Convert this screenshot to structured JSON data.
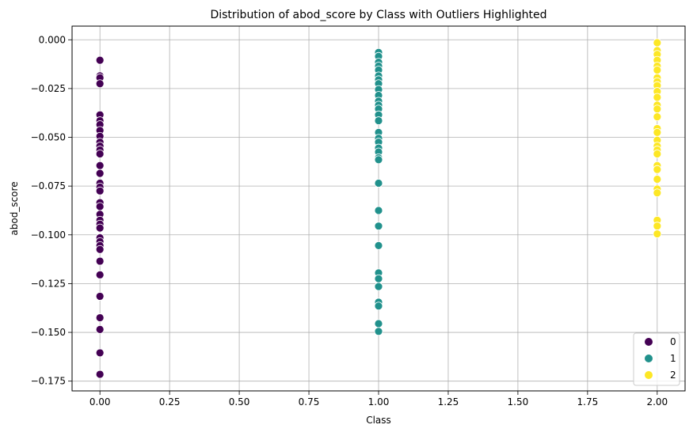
{
  "chart_data": {
    "type": "scatter",
    "title": "Distribution of abod_score by Class with Outliers Highlighted",
    "xlabel": "Class",
    "ylabel": "abod_score",
    "xlim": [
      -0.1,
      2.1
    ],
    "ylim": [
      -0.18,
      0.007
    ],
    "x_ticks": [
      "0.00",
      "0.25",
      "0.50",
      "0.75",
      "1.00",
      "1.25",
      "1.50",
      "1.75",
      "2.00"
    ],
    "x_tick_values": [
      0,
      0.25,
      0.5,
      0.75,
      1.0,
      1.25,
      1.5,
      1.75,
      2.0
    ],
    "y_ticks": [
      "0.000",
      "−0.025",
      "−0.050",
      "−0.075",
      "−0.100",
      "−0.125",
      "−0.150",
      "−0.175"
    ],
    "y_tick_values": [
      0,
      -0.025,
      -0.05,
      -0.075,
      -0.1,
      -0.125,
      -0.15,
      -0.175
    ],
    "grid": true,
    "legend": {
      "position": "bottom-right",
      "entries": [
        "0",
        "1",
        "2"
      ]
    },
    "series": [
      {
        "name": "0",
        "color": "#440154",
        "x": 0,
        "values": [
          -0.0105,
          -0.0185,
          -0.0195,
          -0.0225,
          -0.0385,
          -0.0415,
          -0.0435,
          -0.0465,
          -0.0495,
          -0.0525,
          -0.0545,
          -0.0565,
          -0.0585,
          -0.0645,
          -0.0685,
          -0.0735,
          -0.0755,
          -0.0775,
          -0.0835,
          -0.0855,
          -0.0895,
          -0.0925,
          -0.0945,
          -0.0965,
          -0.1015,
          -0.1035,
          -0.1055,
          -0.1075,
          -0.1135,
          -0.1205,
          -0.1315,
          -0.1425,
          -0.1485,
          -0.1605,
          -0.1715
        ]
      },
      {
        "name": "1",
        "color": "#21918c",
        "x": 1,
        "values": [
          -0.0065,
          -0.0085,
          -0.0115,
          -0.0135,
          -0.0155,
          -0.0185,
          -0.0205,
          -0.0225,
          -0.0255,
          -0.0285,
          -0.0315,
          -0.0335,
          -0.0355,
          -0.0385,
          -0.0415,
          -0.0475,
          -0.0505,
          -0.0525,
          -0.0555,
          -0.0575,
          -0.0605,
          -0.0615,
          -0.0735,
          -0.0875,
          -0.0955,
          -0.1055,
          -0.1195,
          -0.1225,
          -0.1265,
          -0.1345,
          -0.1365,
          -0.1455,
          -0.1495
        ]
      },
      {
        "name": "2",
        "color": "#fde725",
        "x": 2,
        "values": [
          -0.0015,
          -0.0055,
          -0.0075,
          -0.0105,
          -0.0135,
          -0.0155,
          -0.0195,
          -0.0215,
          -0.0235,
          -0.0265,
          -0.0295,
          -0.0335,
          -0.0355,
          -0.0395,
          -0.0455,
          -0.0475,
          -0.0515,
          -0.0545,
          -0.0565,
          -0.0585,
          -0.0645,
          -0.0665,
          -0.0715,
          -0.0765,
          -0.0785,
          -0.0925,
          -0.0955,
          -0.0995
        ]
      }
    ]
  }
}
